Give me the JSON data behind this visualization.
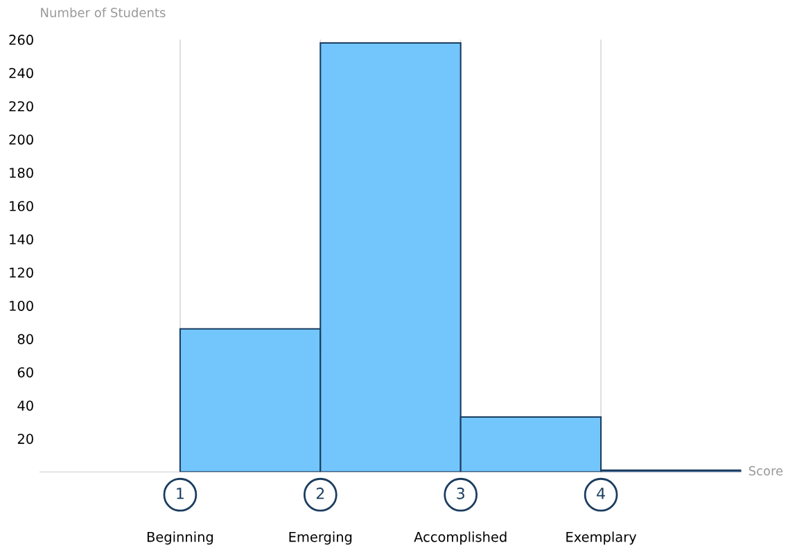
{
  "chart_data": {
    "type": "histogram",
    "xlabel": "Score",
    "ylabel": "Number of Students",
    "bins": [
      1,
      2,
      3,
      4,
      5
    ],
    "values": [
      86,
      258,
      33,
      1
    ],
    "color": "#73c6fc",
    "xlim": [
      0,
      5
    ],
    "xticks": [
      1,
      2,
      3,
      4
    ],
    "ylim": [
      0,
      260
    ],
    "yticks": [
      20,
      40,
      60,
      80,
      100,
      120,
      140,
      160,
      180,
      200,
      220,
      240,
      260
    ],
    "grid": "x",
    "annotations": [
      "Beginning",
      "Emerging",
      "Accomplished",
      "Exemplary"
    ]
  }
}
